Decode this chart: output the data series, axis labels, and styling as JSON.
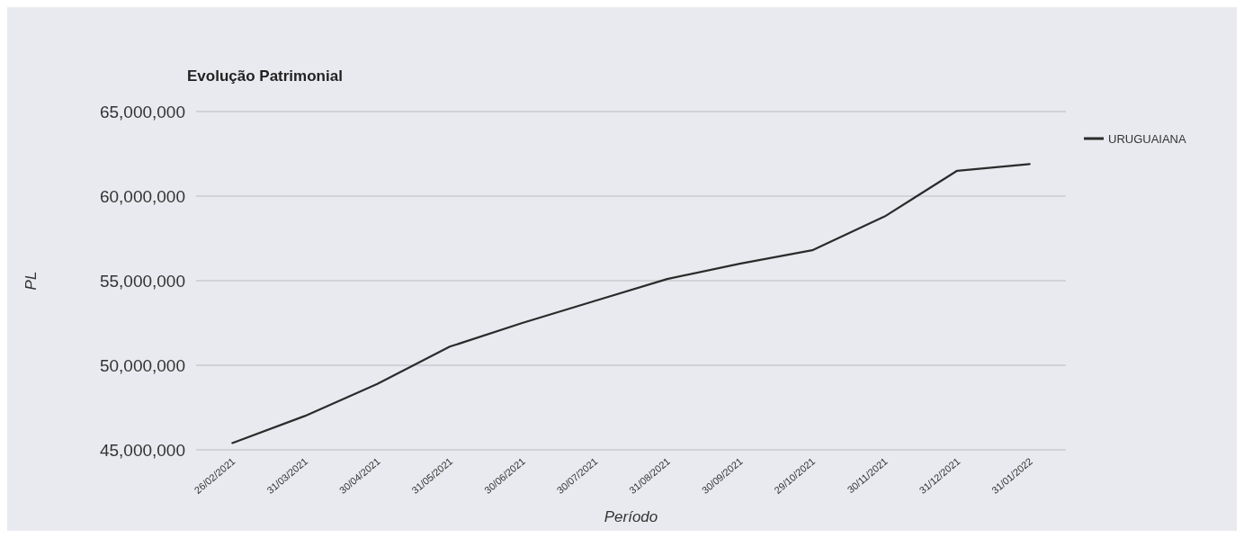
{
  "chart_data": {
    "type": "line",
    "title": "Evolução Patrimonial",
    "xlabel": "Período",
    "ylabel": "PL",
    "categories": [
      "26/02/2021",
      "31/03/2021",
      "30/04/2021",
      "31/05/2021",
      "30/06/2021",
      "30/07/2021",
      "31/08/2021",
      "30/09/2021",
      "29/10/2021",
      "30/11/2021",
      "31/12/2021",
      "31/01/2022"
    ],
    "series": [
      {
        "name": "URUGUAIANA",
        "color": "#2b2b2b",
        "values": [
          45400000,
          47000000,
          48900000,
          51100000,
          52500000,
          53800000,
          55100000,
          56000000,
          56800000,
          58800000,
          61500000,
          61900000
        ]
      }
    ],
    "ylim": [
      45000000,
      65000000
    ],
    "yticks": [
      {
        "value": 45000000,
        "label": "45,000,000"
      },
      {
        "value": 50000000,
        "label": "50,000,000"
      },
      {
        "value": 55000000,
        "label": "55,000,000"
      },
      {
        "value": 60000000,
        "label": "60,000,000"
      },
      {
        "value": 65000000,
        "label": "65,000,000"
      }
    ],
    "grid": "y",
    "legend": "top right",
    "marker": "none",
    "line_style": "solid"
  }
}
